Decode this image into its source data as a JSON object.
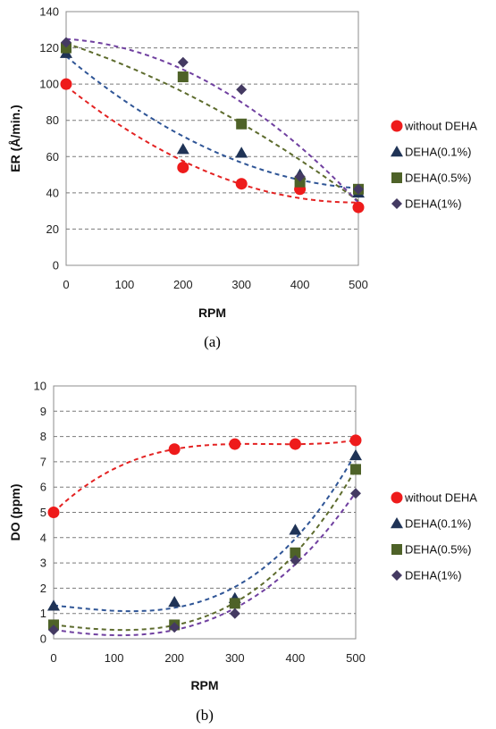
{
  "colors": {
    "without DEHA": "#ee1b1b",
    "DEHA(0.1%)": "#1f3356",
    "DEHA(0.5%)": "#4e6228",
    "DEHA(1%)": "#443a62",
    "trend_without DEHA": "#e32222",
    "trend_DEHA(0.1%)": "#2f5596",
    "trend_DEHA(0.5%)": "#5d6b2d",
    "trend_DEHA(1%)": "#7040a0"
  },
  "chart_data": [
    {
      "type": "scatter",
      "caption": "(a)",
      "xlabel": "RPM",
      "ylabel": "ER (Å/min.)",
      "xlim": [
        0,
        500
      ],
      "ylim": [
        0,
        140
      ],
      "xticks": [
        0,
        100,
        200,
        300,
        400,
        500
      ],
      "yticks": [
        0,
        20,
        40,
        60,
        80,
        100,
        120,
        140
      ],
      "grid": "horizontal dashed",
      "legend_position": "right",
      "trendlines": "dashed",
      "series": [
        {
          "name": "without DEHA",
          "marker": "circle",
          "x": [
            0,
            200,
            300,
            400,
            500
          ],
          "y": [
            100,
            54,
            45,
            42,
            32
          ]
        },
        {
          "name": "DEHA(0.1%)",
          "marker": "triangle",
          "x": [
            0,
            200,
            300,
            400,
            500
          ],
          "y": [
            117,
            64,
            62,
            50,
            40
          ]
        },
        {
          "name": "DEHA(0.5%)",
          "marker": "square",
          "x": [
            0,
            200,
            300,
            400,
            500
          ],
          "y": [
            120,
            104,
            78,
            46,
            42
          ]
        },
        {
          "name": "DEHA(1%)",
          "marker": "diamond",
          "x": [
            0,
            200,
            300,
            400,
            500
          ],
          "y": [
            123,
            112,
            97,
            49,
            42
          ]
        }
      ]
    },
    {
      "type": "scatter",
      "caption": "(b)",
      "xlabel": "RPM",
      "ylabel": "DO  (ppm)",
      "xlim": [
        0,
        500
      ],
      "ylim": [
        0,
        10
      ],
      "xticks": [
        0,
        100,
        200,
        300,
        400,
        500
      ],
      "yticks": [
        0,
        1,
        2,
        3,
        4,
        5,
        6,
        7,
        8,
        9,
        10
      ],
      "grid": "horizontal dashed",
      "legend_position": "right",
      "trendlines": "dashed",
      "series": [
        {
          "name": "without DEHA",
          "marker": "circle",
          "x": [
            0,
            200,
            300,
            400,
            500
          ],
          "y": [
            5.0,
            7.5,
            7.7,
            7.7,
            7.85
          ]
        },
        {
          "name": "DEHA(0.1%)",
          "marker": "triangle",
          "x": [
            0,
            200,
            300,
            400,
            500
          ],
          "y": [
            1.3,
            1.45,
            1.6,
            4.3,
            7.25
          ]
        },
        {
          "name": "DEHA(0.5%)",
          "marker": "square",
          "x": [
            0,
            200,
            300,
            400,
            500
          ],
          "y": [
            0.55,
            0.55,
            1.4,
            3.4,
            6.7
          ]
        },
        {
          "name": "DEHA(1%)",
          "marker": "diamond",
          "x": [
            0,
            200,
            300,
            400,
            500
          ],
          "y": [
            0.35,
            0.45,
            1.0,
            3.1,
            5.75
          ]
        }
      ]
    }
  ]
}
